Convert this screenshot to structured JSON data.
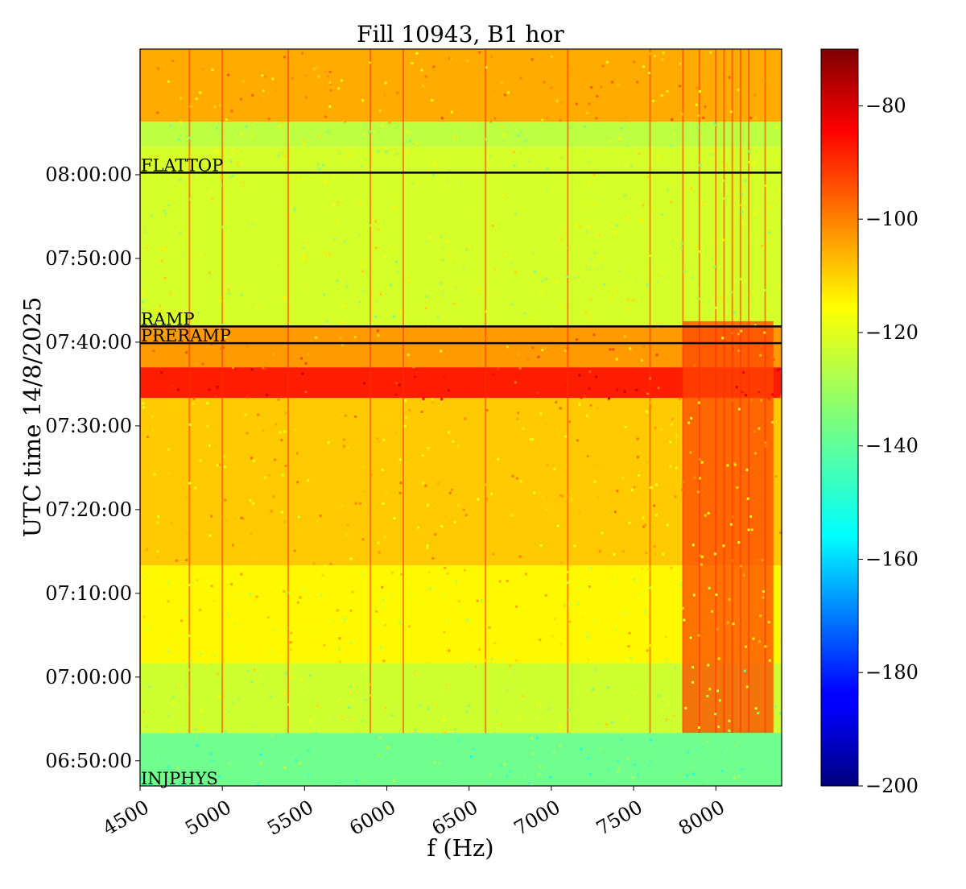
{
  "chart_data": {
    "type": "heatmap",
    "title": "Fill 10943, B1 hor",
    "xlabel": "f (Hz)",
    "ylabel": "UTC time 14/8/2025",
    "xlim": [
      4500,
      8400
    ],
    "ylim_seconds_since_midnight": [
      24420,
      29700
    ],
    "x_ticks": [
      4500,
      5000,
      5500,
      6000,
      6500,
      7000,
      7500,
      8000
    ],
    "x_tick_labels": [
      "4500",
      "5000",
      "5500",
      "6000",
      "6500",
      "7000",
      "7500",
      "8000"
    ],
    "y_ticks": [
      {
        "label": "06:50:00",
        "t": 24600
      },
      {
        "label": "07:00:00",
        "t": 25200
      },
      {
        "label": "07:10:00",
        "t": 25800
      },
      {
        "label": "07:20:00",
        "t": 26400
      },
      {
        "label": "07:30:00",
        "t": 27000
      },
      {
        "label": "07:40:00",
        "t": 27600
      },
      {
        "label": "07:50:00",
        "t": 28200
      },
      {
        "label": "08:00:00",
        "t": 28800
      }
    ],
    "colorbar": {
      "colormap": "jet",
      "range": [
        -200,
        -70
      ],
      "ticks": [
        -80,
        -100,
        -120,
        -140,
        -160,
        -180,
        -200
      ],
      "tick_labels": [
        "−80",
        "−100",
        "−120",
        "−140",
        "−160",
        "−180",
        "−200"
      ]
    },
    "phase_markers": [
      {
        "label": "FLATTOP",
        "t": 28815,
        "line": true
      },
      {
        "label": "RAMP",
        "t": 27713,
        "line": true
      },
      {
        "label": "PRERAMP",
        "t": 27593,
        "line": true
      },
      {
        "label": "INJPHYS",
        "t": 24420,
        "line": false
      }
    ],
    "regions": [
      {
        "t": [
          24420,
          24800
        ],
        "level": -137
      },
      {
        "t": [
          24800,
          25300
        ],
        "level": -125
      },
      {
        "t": [
          25300,
          26000
        ],
        "level": -118
      },
      {
        "t": [
          26000,
          27200
        ],
        "level": -112
      },
      {
        "t": [
          27200,
          27420
        ],
        "level": -90
      },
      {
        "t": [
          27420,
          27720
        ],
        "level": -106
      },
      {
        "t": [
          27720,
          29000
        ],
        "level": -124
      },
      {
        "t": [
          29000,
          29180
        ],
        "level": -127
      },
      {
        "t": [
          29180,
          29700
        ],
        "level": -108
      }
    ],
    "hot_band": {
      "f": [
        7800,
        8350
      ],
      "t": [
        24800,
        27750
      ],
      "level": -95
    },
    "harmonic_lines_f": [
      4500,
      4800,
      5000,
      5400,
      5900,
      6100,
      6600,
      7100,
      7600,
      7800,
      7900,
      8000,
      8050,
      8100,
      8150,
      8200,
      8300
    ]
  }
}
